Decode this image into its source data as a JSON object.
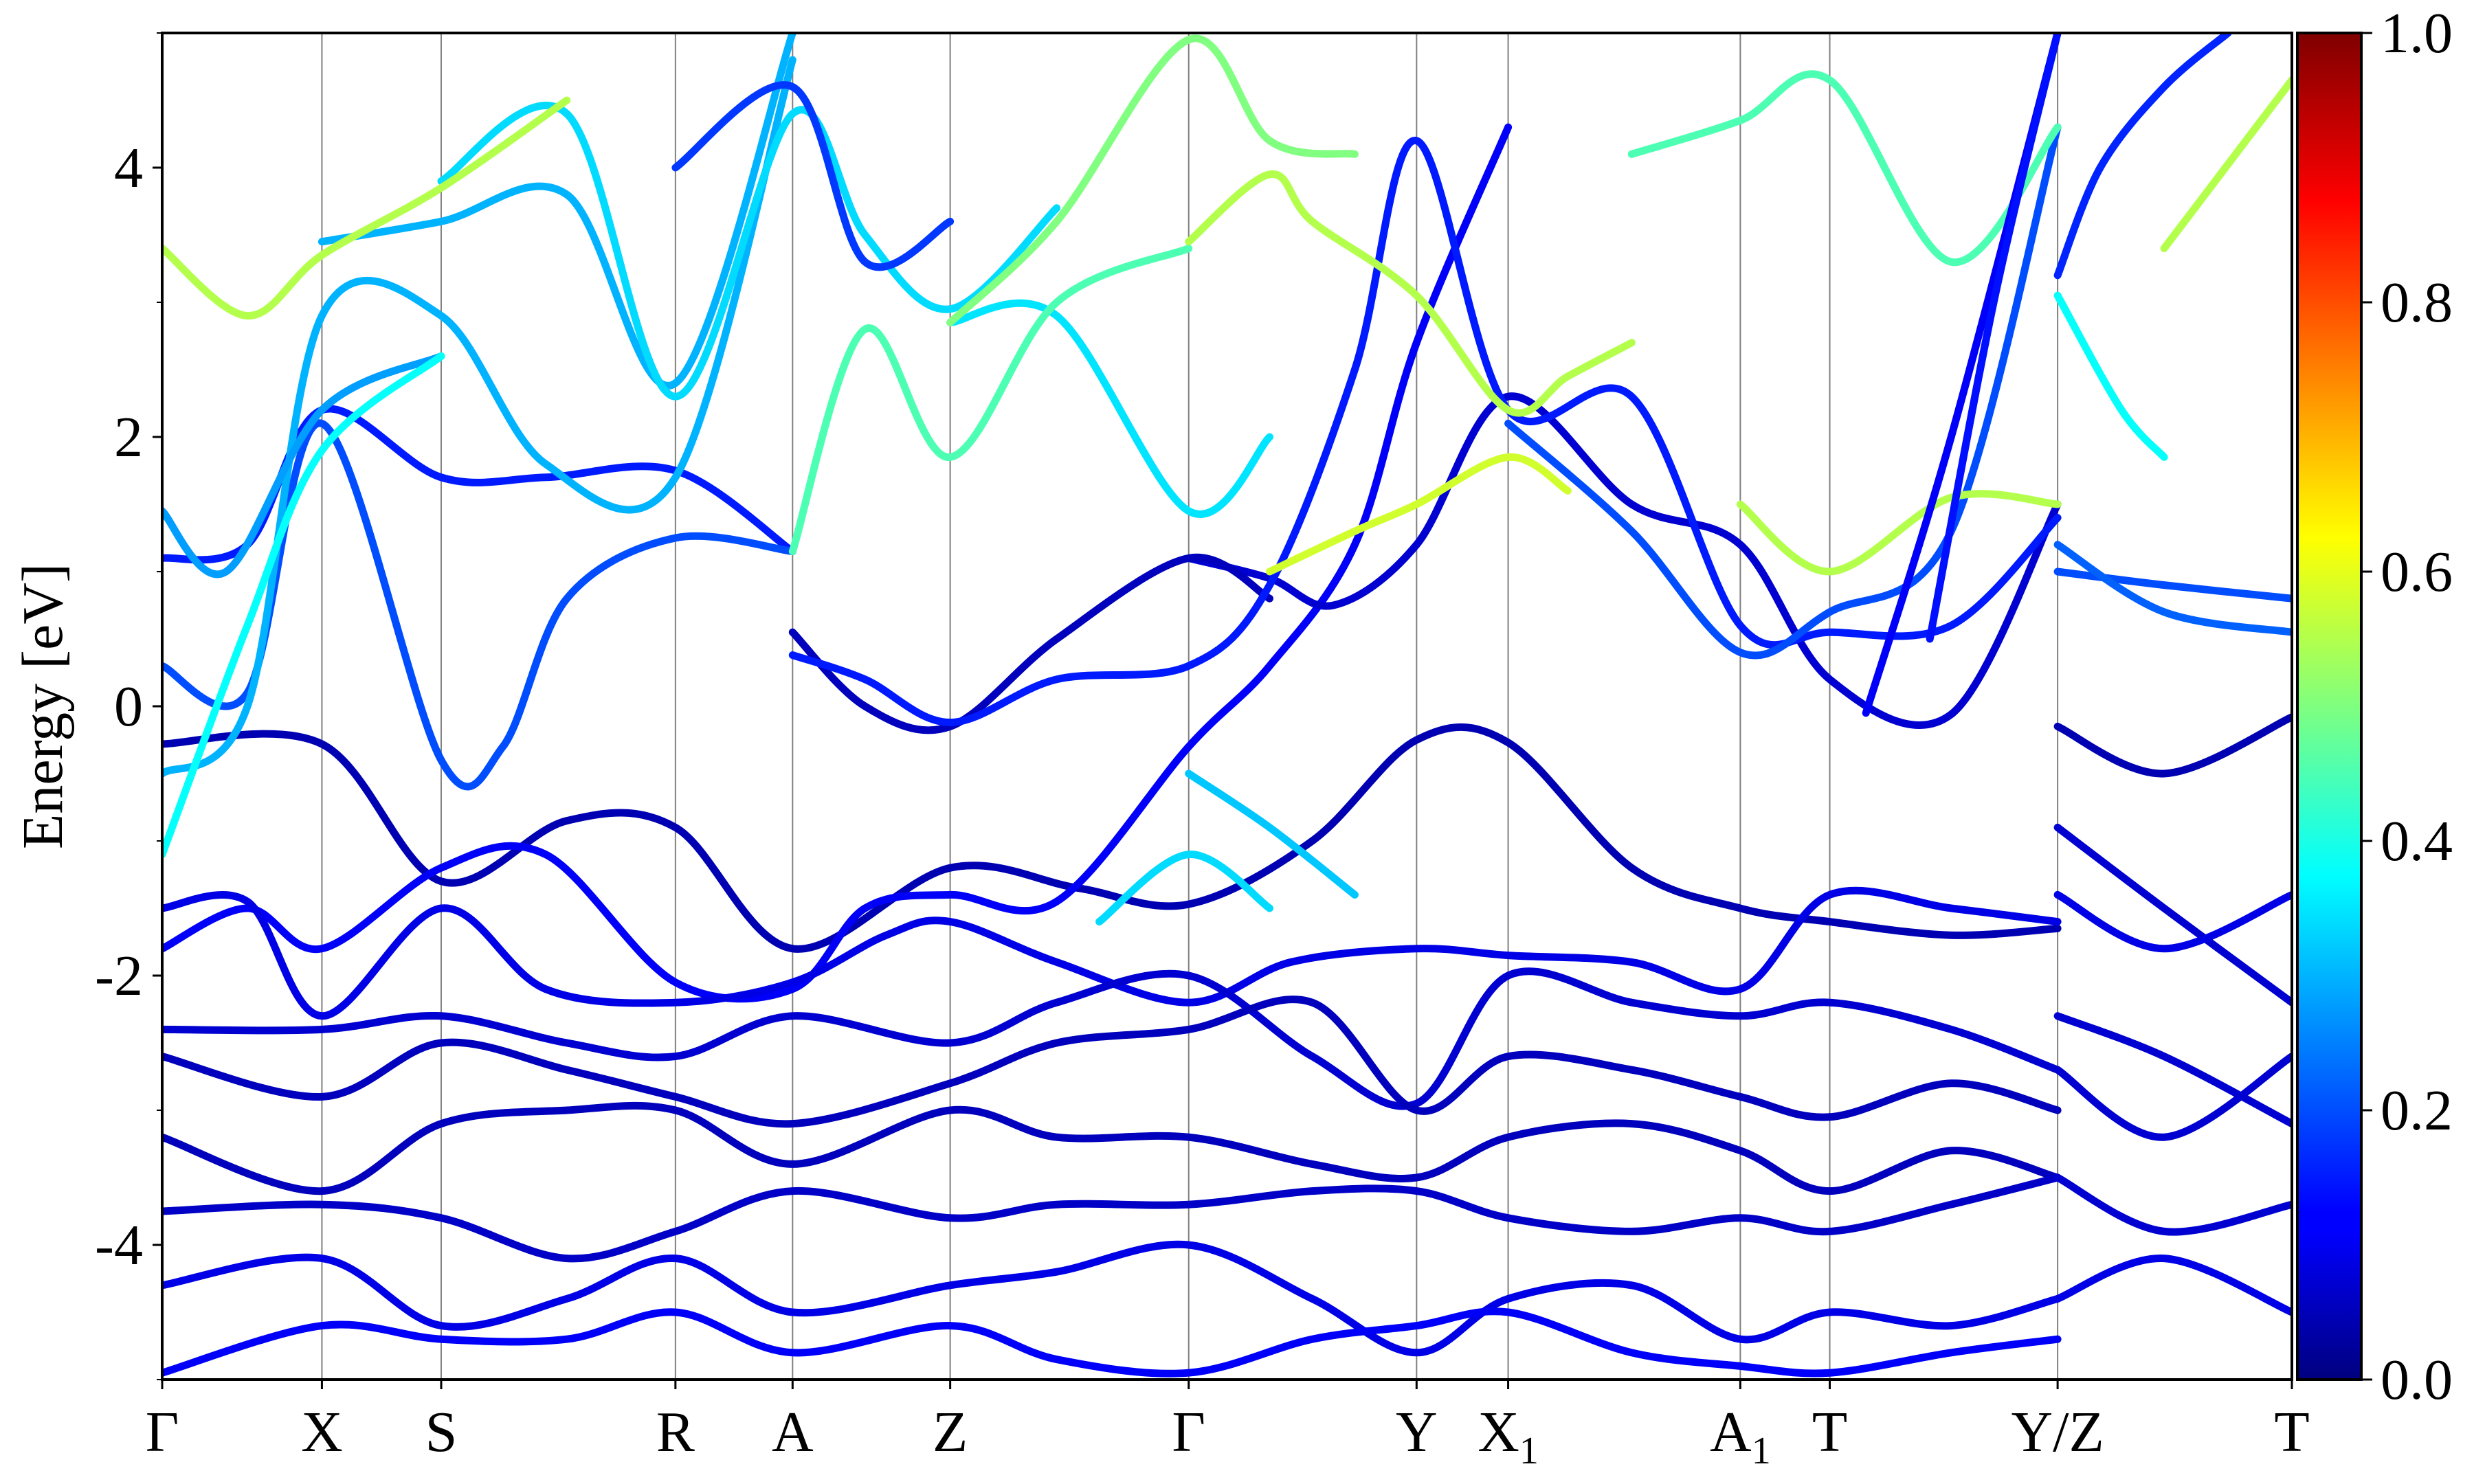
{
  "chart_data": {
    "type": "line",
    "title": "",
    "xlabel": "",
    "ylabel": "Energy [eV]",
    "ylim": [
      -5,
      5
    ],
    "y_ticks": [
      4,
      2,
      0,
      -2,
      -4
    ],
    "y_tick_labels": [
      "4",
      "2",
      "0",
      "-2",
      "-4"
    ],
    "k_points": [
      {
        "label": "Γ",
        "sub": "",
        "x": 0.0
      },
      {
        "label": "X",
        "sub": "",
        "x": 0.075
      },
      {
        "label": "S",
        "sub": "",
        "x": 0.131
      },
      {
        "label": "R",
        "sub": "",
        "x": 0.241
      },
      {
        "label": "A",
        "sub": "",
        "x": 0.296
      },
      {
        "label": "Z",
        "sub": "",
        "x": 0.37
      },
      {
        "label": "Γ",
        "sub": "",
        "x": 0.482
      },
      {
        "label": "Y",
        "sub": "",
        "x": 0.589
      },
      {
        "label": "X",
        "sub": "1",
        "x": 0.632
      },
      {
        "label": "A",
        "sub": "1",
        "x": 0.741
      },
      {
        "label": "T",
        "sub": "",
        "x": 0.783
      },
      {
        "label": "Y/Z",
        "sub": "",
        "x": 0.89
      },
      {
        "label": "T",
        "sub": "",
        "x": 1.0
      }
    ],
    "colorbar": {
      "colormap": "jet",
      "range": [
        0.0,
        1.0
      ],
      "tick_labels": [
        "1.0",
        "0.8",
        "0.6",
        "0.4",
        "0.2",
        "0.0"
      ]
    },
    "series": [
      {
        "weight": 0.05,
        "x": [
          0,
          0.075,
          0.131,
          0.19,
          0.241,
          0.296,
          0.37,
          0.43,
          0.482,
          0.54,
          0.589,
          0.632,
          0.69,
          0.741,
          0.783,
          0.84,
          0.89
        ],
        "y": [
          -0.28,
          -0.28,
          -1.3,
          -0.85,
          -0.9,
          -1.8,
          -1.2,
          -1.35,
          -1.47,
          -1.0,
          -0.25,
          -0.27,
          -1.2,
          -1.5,
          -1.6,
          -1.7,
          -1.65
        ]
      },
      {
        "weight": 0.05,
        "x": [
          0.89,
          0.94,
          1.0
        ],
        "y": [
          -0.15,
          -0.5,
          -0.08
        ]
      },
      {
        "weight": 0.12,
        "x": [
          0,
          0.04,
          0.075,
          0.131,
          0.18,
          0.241,
          0.296,
          0.33,
          0.37,
          0.42,
          0.482,
          0.52,
          0.56,
          0.589,
          0.632
        ],
        "y": [
          -1.8,
          -1.5,
          -1.8,
          -1.2,
          -1.1,
          -2.05,
          -2.1,
          -1.5,
          -1.4,
          -1.45,
          -0.3,
          0.3,
          1.2,
          2.7,
          4.3
        ]
      },
      {
        "weight": 0.1,
        "x": [
          0,
          0.04,
          0.075,
          0.131,
          0.18,
          0.241,
          0.296,
          0.34,
          0.37,
          0.42,
          0.482,
          0.53,
          0.589,
          0.632,
          0.69,
          0.741,
          0.783,
          0.84,
          0.89
        ],
        "y": [
          -1.5,
          -1.45,
          -2.3,
          -1.5,
          -2.1,
          -2.2,
          -2.05,
          -1.7,
          -1.6,
          -1.9,
          -2.2,
          -1.9,
          -1.8,
          -1.85,
          -1.9,
          -2.1,
          -1.4,
          -1.5,
          -1.6
        ]
      },
      {
        "weight": 0.08,
        "x": [
          0,
          0.075,
          0.131,
          0.19,
          0.241,
          0.296,
          0.37,
          0.42,
          0.482,
          0.54,
          0.589,
          0.632,
          0.69,
          0.741,
          0.783,
          0.84,
          0.89
        ],
        "y": [
          -2.4,
          -2.4,
          -2.3,
          -2.5,
          -2.6,
          -2.3,
          -2.5,
          -2.2,
          -2.0,
          -2.6,
          -2.95,
          -2.0,
          -2.2,
          -2.3,
          -2.2,
          -2.4,
          -2.7
        ]
      },
      {
        "weight": 0.06,
        "x": [
          0,
          0.075,
          0.131,
          0.19,
          0.241,
          0.296,
          0.37,
          0.42,
          0.482,
          0.54,
          0.589,
          0.632,
          0.69,
          0.741,
          0.783,
          0.84,
          0.89
        ],
        "y": [
          -2.6,
          -2.9,
          -2.5,
          -2.7,
          -2.9,
          -3.1,
          -2.8,
          -2.5,
          -2.4,
          -2.2,
          -3.0,
          -2.6,
          -2.7,
          -2.9,
          -3.05,
          -2.8,
          -3.0
        ]
      },
      {
        "weight": 0.06,
        "x": [
          0,
          0.075,
          0.131,
          0.19,
          0.241,
          0.296,
          0.37,
          0.42,
          0.482,
          0.54,
          0.589,
          0.632,
          0.69,
          0.741,
          0.783,
          0.84,
          0.89
        ],
        "y": [
          -3.2,
          -3.6,
          -3.1,
          -3.0,
          -3.0,
          -3.4,
          -3.0,
          -3.2,
          -3.2,
          -3.4,
          -3.5,
          -3.2,
          -3.1,
          -3.3,
          -3.6,
          -3.3,
          -3.5
        ]
      },
      {
        "weight": 0.07,
        "x": [
          0,
          0.075,
          0.131,
          0.19,
          0.241,
          0.296,
          0.37,
          0.42,
          0.482,
          0.54,
          0.589,
          0.632,
          0.69,
          0.741,
          0.783,
          0.84,
          0.89
        ],
        "y": [
          -3.75,
          -3.7,
          -3.8,
          -4.1,
          -3.9,
          -3.6,
          -3.8,
          -3.7,
          -3.7,
          -3.6,
          -3.6,
          -3.8,
          -3.9,
          -3.8,
          -3.9,
          -3.7,
          -3.5
        ]
      },
      {
        "weight": 0.1,
        "x": [
          0,
          0.075,
          0.131,
          0.19,
          0.241,
          0.296,
          0.37,
          0.42,
          0.482,
          0.54,
          0.589,
          0.632,
          0.69,
          0.741,
          0.783,
          0.84,
          0.89
        ],
        "y": [
          -4.3,
          -4.1,
          -4.6,
          -4.4,
          -4.1,
          -4.5,
          -4.3,
          -4.2,
          -4.0,
          -4.4,
          -4.8,
          -4.4,
          -4.3,
          -4.7,
          -4.5,
          -4.6,
          -4.4
        ]
      },
      {
        "weight": 0.12,
        "x": [
          0,
          0.075,
          0.131,
          0.19,
          0.241,
          0.296,
          0.37,
          0.42,
          0.482,
          0.54,
          0.589,
          0.632,
          0.69,
          0.741,
          0.783,
          0.84,
          0.89
        ],
        "y": [
          -4.95,
          -4.6,
          -4.7,
          -4.7,
          -4.5,
          -4.8,
          -4.6,
          -4.85,
          -4.95,
          -4.7,
          -4.6,
          -4.5,
          -4.8,
          -4.9,
          -4.95,
          -4.8,
          -4.7
        ]
      },
      {
        "weight": 0.08,
        "x": [
          0.89,
          0.94,
          1.0
        ],
        "y": [
          -0.9,
          -1.5,
          -2.2
        ]
      },
      {
        "weight": 0.1,
        "x": [
          0.89,
          0.94,
          1.0
        ],
        "y": [
          -1.4,
          -1.8,
          -1.4
        ]
      },
      {
        "weight": 0.08,
        "x": [
          0.89,
          0.94,
          1.0
        ],
        "y": [
          -2.3,
          -2.6,
          -3.1
        ]
      },
      {
        "weight": 0.08,
        "x": [
          0.89,
          0.94,
          1.0
        ],
        "y": [
          -2.7,
          -3.2,
          -2.6
        ]
      },
      {
        "weight": 0.08,
        "x": [
          0.89,
          0.94,
          1.0
        ],
        "y": [
          -3.5,
          -3.9,
          -3.7
        ]
      },
      {
        "weight": 0.1,
        "x": [
          0.89,
          0.94,
          1.0
        ],
        "y": [
          -4.4,
          -4.1,
          -4.5
        ]
      },
      {
        "weight": 0.08,
        "x": [
          0.482,
          0.52,
          0.55,
          0.589,
          0.632,
          0.69,
          0.741,
          0.783,
          0.84,
          0.89
        ],
        "y": [
          1.1,
          0.95,
          0.75,
          1.2,
          2.3,
          1.5,
          1.2,
          0.2,
          -0.06,
          1.5
        ]
      },
      {
        "weight": 0.06,
        "x": [
          0.296,
          0.33,
          0.37,
          0.42,
          0.482,
          0.52
        ],
        "y": [
          0.55,
          0.0,
          -0.15,
          0.5,
          1.1,
          0.8
        ]
      },
      {
        "weight": 0.15,
        "x": [
          0,
          0.04,
          0.075,
          0.131,
          0.18,
          0.241,
          0.296
        ],
        "y": [
          1.1,
          1.2,
          2.2,
          1.7,
          1.7,
          1.75,
          1.15
        ]
      },
      {
        "weight": 0.15,
        "x": [
          0.296,
          0.33,
          0.37,
          0.42,
          0.482,
          0.52,
          0.56,
          0.589,
          0.632,
          0.69,
          0.741,
          0.783,
          0.84,
          0.89
        ],
        "y": [
          0.38,
          0.2,
          -0.12,
          0.2,
          0.3,
          0.9,
          2.5,
          4.2,
          2.2,
          2.3,
          0.6,
          0.55,
          0.6,
          1.4
        ]
      },
      {
        "weight": 0.2,
        "x": [
          0,
          0.04,
          0.075,
          0.131,
          0.16,
          0.19,
          0.241,
          0.296
        ],
        "y": [
          0.3,
          0.1,
          2.1,
          -0.4,
          -0.3,
          0.8,
          1.25,
          1.15
        ]
      },
      {
        "weight": 0.2,
        "x": [
          0.632,
          0.69,
          0.741,
          0.783,
          0.84,
          0.89
        ],
        "y": [
          2.1,
          1.3,
          0.4,
          0.7,
          1.3,
          4.3
        ]
      },
      {
        "weight": 0.2,
        "x": [
          0.89,
          0.94,
          1.0
        ],
        "y": [
          1.0,
          0.9,
          0.8
        ]
      },
      {
        "weight": 0.22,
        "x": [
          0.89,
          0.94,
          1.0
        ],
        "y": [
          1.2,
          0.7,
          0.55
        ]
      },
      {
        "weight": 0.3,
        "x": [
          0,
          0.04,
          0.075,
          0.131,
          0.18,
          0.241,
          0.296
        ],
        "y": [
          -0.5,
          0.0,
          2.9,
          2.9,
          1.8,
          1.7,
          4.8
        ]
      },
      {
        "weight": 0.28,
        "x": [
          0,
          0.03,
          0.075,
          0.131
        ],
        "y": [
          1.45,
          1.0,
          2.2,
          2.6
        ]
      },
      {
        "weight": 0.35,
        "x": [
          0.37,
          0.42,
          0.482,
          0.52
        ],
        "y": [
          2.85,
          2.9,
          1.45,
          2.0
        ]
      },
      {
        "weight": 0.32,
        "x": [
          0.482,
          0.52,
          0.56
        ],
        "y": [
          -0.5,
          -0.9,
          -1.4
        ]
      },
      {
        "weight": 0.34,
        "x": [
          0.44,
          0.482,
          0.52
        ],
        "y": [
          -1.6,
          -1.1,
          -1.5
        ]
      },
      {
        "weight": 0.3,
        "x": [
          0.075,
          0.131,
          0.19,
          0.241,
          0.296
        ],
        "y": [
          3.45,
          3.6,
          3.8,
          2.4,
          5.0
        ]
      },
      {
        "weight": 0.34,
        "x": [
          0.131,
          0.19,
          0.241,
          0.296,
          0.33,
          0.37,
          0.42
        ],
        "y": [
          3.9,
          4.4,
          2.3,
          4.4,
          3.5,
          2.95,
          3.7
        ]
      },
      {
        "weight": 0.38,
        "x": [
          0.0,
          0.04,
          0.075,
          0.131
        ],
        "y": [
          -1.1,
          0.6,
          1.9,
          2.6
        ]
      },
      {
        "weight": 0.45,
        "x": [
          0.296,
          0.33,
          0.37,
          0.42,
          0.482
        ],
        "y": [
          1.15,
          2.8,
          1.85,
          3.0,
          3.4
        ]
      },
      {
        "weight": 0.55,
        "x": [
          0.482,
          0.52,
          0.54,
          0.589,
          0.632,
          0.66,
          0.69
        ],
        "y": [
          3.45,
          3.95,
          3.6,
          3.05,
          2.2,
          2.45,
          2.7
        ]
      },
      {
        "weight": 0.58,
        "x": [
          0.52,
          0.56,
          0.589,
          0.632,
          0.66
        ],
        "y": [
          1.0,
          1.3,
          1.5,
          1.85,
          1.6
        ]
      },
      {
        "weight": 0.55,
        "x": [
          0.0,
          0.04,
          0.075,
          0.131,
          0.19
        ],
        "y": [
          3.4,
          2.9,
          3.35,
          3.85,
          4.5
        ]
      },
      {
        "weight": 0.5,
        "x": [
          0.37,
          0.42,
          0.482,
          0.52,
          0.56
        ],
        "y": [
          2.85,
          3.6,
          4.95,
          4.2,
          4.1
        ]
      },
      {
        "weight": 0.45,
        "x": [
          0.69,
          0.741,
          0.783,
          0.84,
          0.89
        ],
        "y": [
          4.1,
          4.35,
          4.65,
          3.3,
          4.3
        ]
      },
      {
        "weight": 0.55,
        "x": [
          0.94,
          1.0
        ],
        "y": [
          3.4,
          4.65
        ]
      },
      {
        "weight": 0.38,
        "x": [
          0.89,
          0.92,
          0.94
        ],
        "y": [
          3.05,
          2.2,
          1.85
        ]
      },
      {
        "weight": 0.55,
        "x": [
          0.741,
          0.783,
          0.84,
          0.89
        ],
        "y": [
          1.5,
          1.0,
          1.55,
          1.5
        ]
      },
      {
        "weight": 0.18,
        "x": [
          0.241,
          0.296,
          0.33,
          0.37
        ],
        "y": [
          4.0,
          4.6,
          3.3,
          3.6
        ]
      },
      {
        "weight": 0.12,
        "x": [
          0.8,
          0.84,
          0.89
        ],
        "y": [
          -0.05,
          2.0,
          5.0
        ]
      },
      {
        "weight": 0.14,
        "x": [
          0.83,
          0.86,
          0.89
        ],
        "y": [
          0.5,
          3.0,
          5.0
        ]
      },
      {
        "weight": 0.16,
        "x": [
          0.89,
          0.91,
          0.94,
          0.97
        ],
        "y": [
          3.2,
          4.0,
          4.6,
          5.0
        ]
      }
    ]
  }
}
